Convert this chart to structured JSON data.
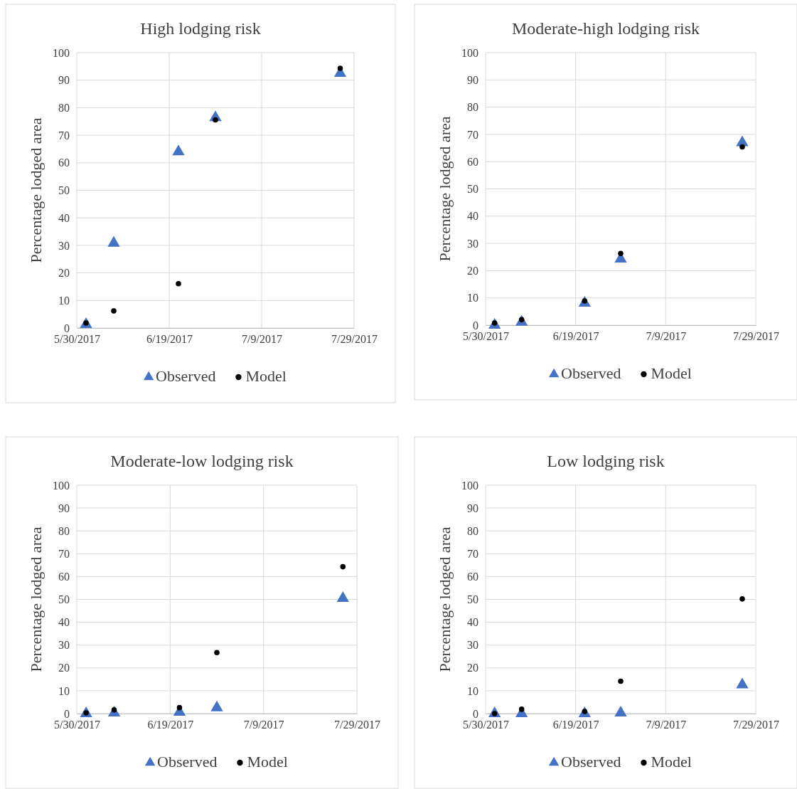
{
  "chart_data": [
    {
      "type": "scatter",
      "title": "High lodging risk",
      "ylabel": "Percentage lodged area",
      "x": [
        "2017-06-01",
        "2017-06-07",
        "2017-06-21",
        "2017-06-29",
        "2017-07-26"
      ],
      "xlim": [
        "2017-05-30",
        "2017-07-29"
      ],
      "xticks": [
        {
          "value": "2017-05-30",
          "label": "5/30/2017"
        },
        {
          "value": "2017-06-19",
          "label": "6/19/2017"
        },
        {
          "value": "2017-07-09",
          "label": "7/9/2017"
        },
        {
          "value": "2017-07-29",
          "label": "7/29/2017"
        }
      ],
      "ylim": [
        0,
        100
      ],
      "yticks": [
        0,
        10,
        20,
        30,
        40,
        50,
        60,
        70,
        80,
        90,
        100
      ],
      "grid": true,
      "legend": "bottom",
      "series": [
        {
          "name": "Observed",
          "color": "#4472c4",
          "marker": "triangle",
          "values": [
            1.3,
            30.8,
            64,
            76.4,
            92.5
          ]
        },
        {
          "name": "Model",
          "color": "#000000",
          "marker": "circle",
          "values": [
            1.8,
            6.2,
            16.1,
            75.6,
            94.3
          ]
        }
      ]
    },
    {
      "type": "scatter",
      "title": "Moderate-high lodging risk",
      "ylabel": "Percentage lodged area",
      "x": [
        "2017-06-01",
        "2017-06-07",
        "2017-06-21",
        "2017-06-29",
        "2017-07-26"
      ],
      "xlim": [
        "2017-05-30",
        "2017-07-29"
      ],
      "xticks": [
        {
          "value": "2017-05-30",
          "label": "5/30/2017"
        },
        {
          "value": "2017-06-19",
          "label": "6/19/2017"
        },
        {
          "value": "2017-07-09",
          "label": "7/9/2017"
        },
        {
          "value": "2017-07-29",
          "label": "7/29/2017"
        }
      ],
      "ylim": [
        0,
        100
      ],
      "yticks": [
        0,
        10,
        20,
        30,
        40,
        50,
        60,
        70,
        80,
        90,
        100
      ],
      "grid": true,
      "legend": "bottom",
      "series": [
        {
          "name": "Observed",
          "color": "#4472c4",
          "marker": "triangle",
          "values": [
            0,
            1.1,
            8.1,
            24.3,
            67
          ]
        },
        {
          "name": "Model",
          "color": "#000000",
          "marker": "circle",
          "values": [
            0.8,
            2,
            8.9,
            26.3,
            65.4
          ]
        }
      ]
    },
    {
      "type": "scatter",
      "title": "Moderate-low lodging risk",
      "ylabel": "Percentage lodged area",
      "x": [
        "2017-06-01",
        "2017-06-07",
        "2017-06-21",
        "2017-06-29",
        "2017-07-26"
      ],
      "xlim": [
        "2017-05-30",
        "2017-07-29"
      ],
      "xticks": [
        {
          "value": "2017-05-30",
          "label": "5/30/2017"
        },
        {
          "value": "2017-06-19",
          "label": "6/19/2017"
        },
        {
          "value": "2017-07-09",
          "label": "7/9/2017"
        },
        {
          "value": "2017-07-29",
          "label": "7/29/2017"
        }
      ],
      "ylim": [
        0,
        100
      ],
      "yticks": [
        0,
        10,
        20,
        30,
        40,
        50,
        60,
        70,
        80,
        90,
        100
      ],
      "grid": true,
      "legend": "bottom",
      "series": [
        {
          "name": "Observed",
          "color": "#4472c4",
          "marker": "triangle",
          "values": [
            0,
            0.3,
            0.6,
            2.6,
            50.5
          ]
        },
        {
          "name": "Model",
          "color": "#000000",
          "marker": "circle",
          "values": [
            0.3,
            1.6,
            2.6,
            26.7,
            64.3
          ]
        }
      ]
    },
    {
      "type": "scatter",
      "title": "Low lodging risk",
      "ylabel": "Percentage lodged area",
      "x": [
        "2017-06-01",
        "2017-06-07",
        "2017-06-21",
        "2017-06-29",
        "2017-07-26"
      ],
      "xlim": [
        "2017-05-30",
        "2017-07-29"
      ],
      "xticks": [
        {
          "value": "2017-05-30",
          "label": "5/30/2017"
        },
        {
          "value": "2017-06-19",
          "label": "6/19/2017"
        },
        {
          "value": "2017-07-09",
          "label": "7/9/2017"
        },
        {
          "value": "2017-07-29",
          "label": "7/29/2017"
        }
      ],
      "ylim": [
        0,
        100
      ],
      "yticks": [
        0,
        10,
        20,
        30,
        40,
        50,
        60,
        70,
        80,
        90,
        100
      ],
      "grid": true,
      "legend": "bottom",
      "series": [
        {
          "name": "Observed",
          "color": "#4472c4",
          "marker": "triangle",
          "values": [
            0,
            0,
            0,
            0.3,
            12.6
          ]
        },
        {
          "name": "Model",
          "color": "#000000",
          "marker": "circle",
          "values": [
            0,
            1.9,
            0.9,
            14.2,
            50.2
          ]
        }
      ]
    }
  ]
}
